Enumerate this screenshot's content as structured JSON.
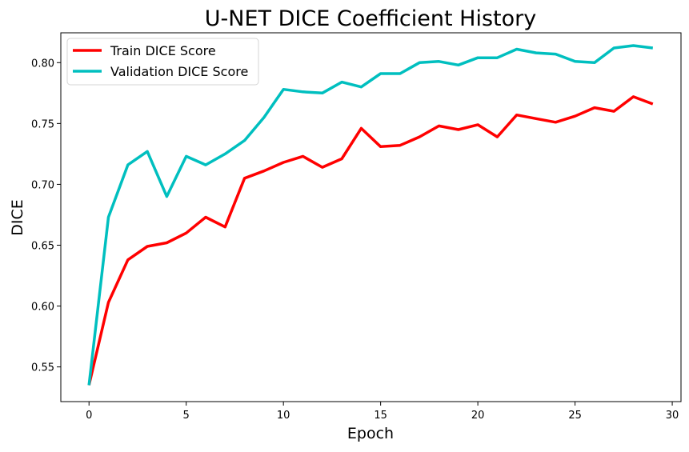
{
  "chart_data": {
    "type": "line",
    "title": "U-NET DICE Coefficient History",
    "xlabel": "Epoch",
    "ylabel": "DICE",
    "xlim": [
      -1.45,
      30.45
    ],
    "ylim": [
      0.5215,
      0.8245
    ],
    "xticks": [
      0,
      5,
      10,
      15,
      20,
      25,
      30
    ],
    "yticks": [
      0.55,
      0.6,
      0.65,
      0.7,
      0.75,
      0.8
    ],
    "xtick_labels": [
      "0",
      "5",
      "10",
      "15",
      "20",
      "25",
      "30"
    ],
    "ytick_labels": [
      "0.55",
      "0.60",
      "0.65",
      "0.70",
      "0.75",
      "0.80"
    ],
    "grid": false,
    "legend_position": "upper left",
    "x": [
      0,
      1,
      2,
      3,
      4,
      5,
      6,
      7,
      8,
      9,
      10,
      11,
      12,
      13,
      14,
      15,
      16,
      17,
      18,
      19,
      20,
      21,
      22,
      23,
      24,
      25,
      26,
      27,
      28,
      29
    ],
    "series": [
      {
        "name": "Train DICE Score",
        "color": "#ff0000",
        "values": [
          0.535,
          0.603,
          0.638,
          0.649,
          0.652,
          0.66,
          0.673,
          0.665,
          0.705,
          0.711,
          0.718,
          0.723,
          0.714,
          0.721,
          0.746,
          0.731,
          0.732,
          0.739,
          0.748,
          0.745,
          0.749,
          0.739,
          0.757,
          0.754,
          0.751,
          0.756,
          0.763,
          0.76,
          0.772,
          0.766
        ]
      },
      {
        "name": "Validation DICE Score",
        "color": "#00bfbf",
        "values": [
          0.535,
          0.673,
          0.716,
          0.727,
          0.69,
          0.723,
          0.716,
          0.725,
          0.736,
          0.755,
          0.778,
          0.776,
          0.775,
          0.784,
          0.78,
          0.791,
          0.791,
          0.8,
          0.801,
          0.798,
          0.804,
          0.804,
          0.811,
          0.808,
          0.807,
          0.801,
          0.8,
          0.812,
          0.814,
          0.812
        ]
      }
    ]
  }
}
